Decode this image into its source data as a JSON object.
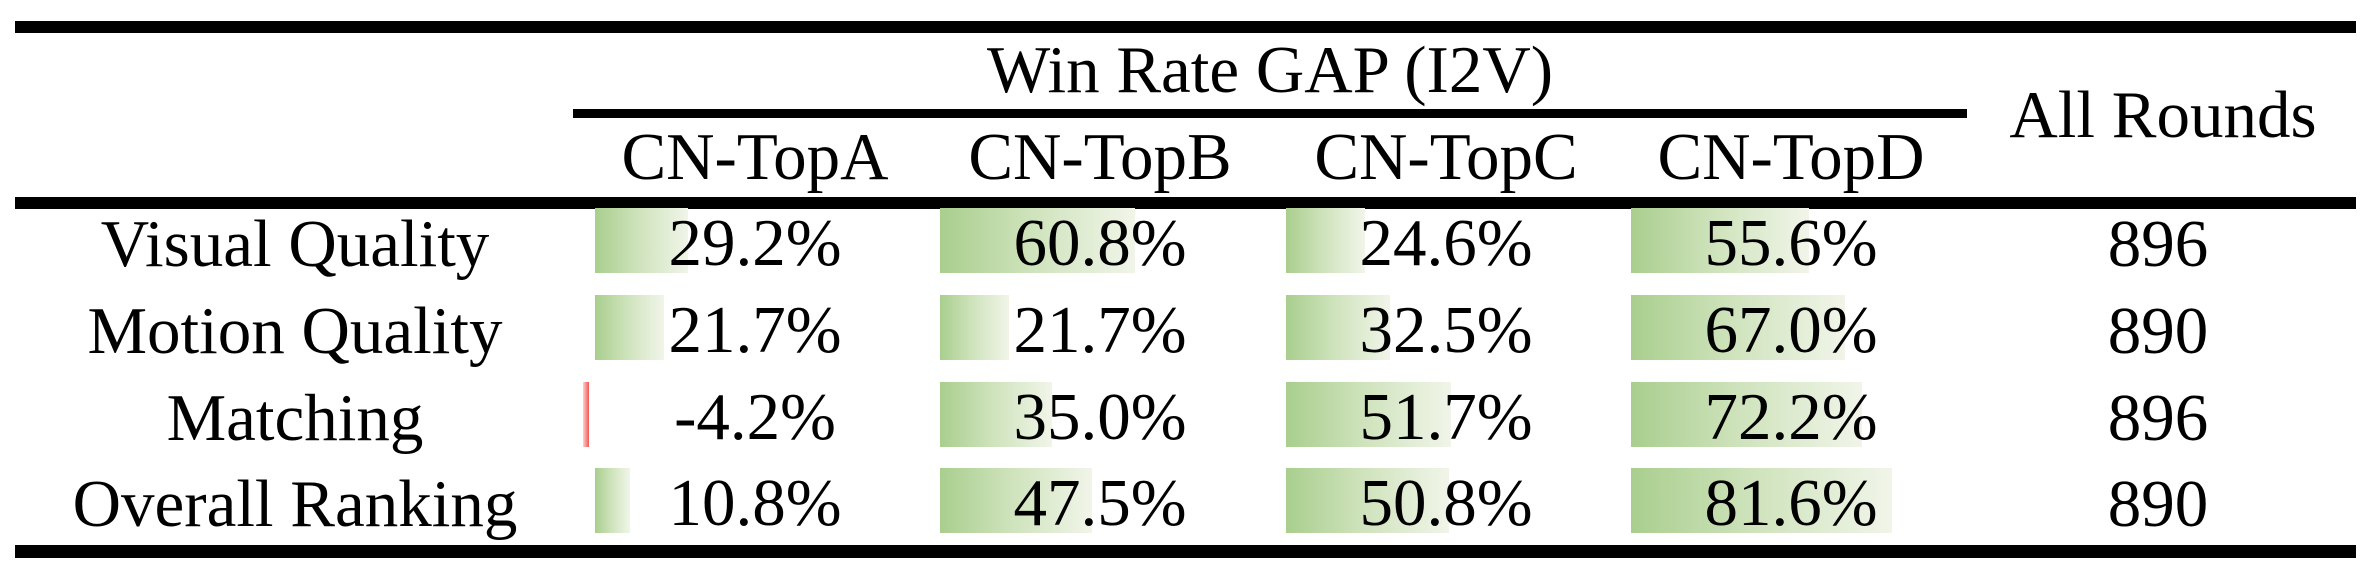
{
  "header": {
    "group_title": "Win Rate GAP (I2V)",
    "columns": [
      "CN-TopA",
      "CN-TopB",
      "CN-TopC",
      "CN-TopD"
    ],
    "all_rounds_label": "All Rounds"
  },
  "rows": [
    {
      "label": "Visual Quality",
      "value_labels": [
        "29.2%",
        "60.8%",
        "24.6%",
        "55.6%"
      ],
      "values": [
        29.2,
        60.8,
        24.6,
        55.6
      ],
      "all_rounds": "896"
    },
    {
      "label": "Motion Quality",
      "value_labels": [
        "21.7%",
        "21.7%",
        "32.5%",
        "67.0%"
      ],
      "values": [
        21.7,
        21.7,
        32.5,
        67.0
      ],
      "all_rounds": "890"
    },
    {
      "label": "Matching",
      "value_labels": [
        "-4.2%",
        "35.0%",
        "51.7%",
        "72.2%"
      ],
      "values": [
        -4.2,
        35.0,
        51.7,
        72.2
      ],
      "all_rounds": "896"
    },
    {
      "label": "Overall Ranking",
      "value_labels": [
        "10.8%",
        "47.5%",
        "50.8%",
        "81.6%"
      ],
      "values": [
        10.8,
        47.5,
        50.8,
        81.6
      ],
      "all_rounds": "890"
    }
  ],
  "colors": {
    "text": "#000000",
    "rule": "#000000",
    "positive_bar_gradient_start": "#a9ce8e",
    "positive_bar_gradient_mid": "#cde2ba",
    "positive_bar_gradient_end": "#f1f5e9",
    "negative_bar_color": "#f4554f",
    "negative_bar_light": "#fbd4d2"
  },
  "chart_data": {
    "type": "table",
    "title": "Win Rate GAP (I2V)",
    "columns": [
      "CN-TopA",
      "CN-TopB",
      "CN-TopC",
      "CN-TopD",
      "All Rounds"
    ],
    "row_labels": [
      "Visual Quality",
      "Motion Quality",
      "Matching",
      "Overall Ranking"
    ],
    "series": [
      {
        "name": "Visual Quality",
        "values": [
          29.2,
          60.8,
          24.6,
          55.6
        ],
        "all_rounds": 896
      },
      {
        "name": "Motion Quality",
        "values": [
          21.7,
          21.7,
          32.5,
          67.0
        ],
        "all_rounds": 890
      },
      {
        "name": "Matching",
        "values": [
          -4.2,
          35.0,
          51.7,
          72.2
        ],
        "all_rounds": 896
      },
      {
        "name": "Overall Ranking",
        "values": [
          10.8,
          47.5,
          50.8,
          81.6
        ],
        "all_rounds": 890
      }
    ],
    "value_unit": "%",
    "bar_scale": [
      0,
      100
    ],
    "bar_style": "in-cell gradient data bars, green positive, red negative"
  }
}
